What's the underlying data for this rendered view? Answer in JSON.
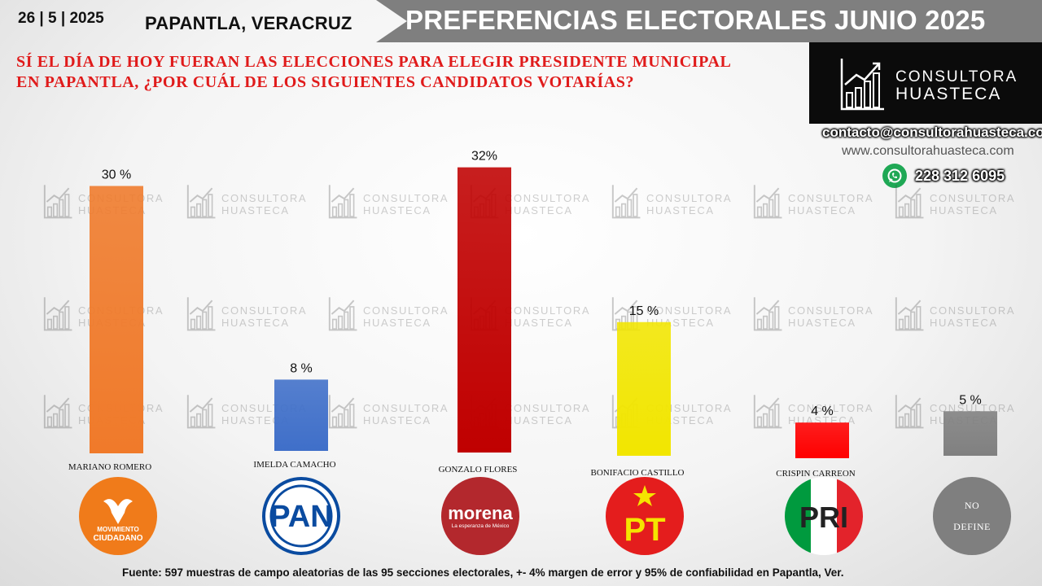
{
  "header": {
    "date": "26 | 5 | 2025",
    "location": "PAPANTLA, VERACRUZ",
    "title": "PREFERENCIAS ELECTORALES JUNIO 2025",
    "question_line1": "SÍ EL DÍA DE HOY FUERAN LAS ELECCIONES PARA ELEGIR PRESIDENTE MUNICIPAL",
    "question_line2": "EN PAPANTLA, ¿POR CUÁL DE LOS SIGUIENTES CANDIDATOS VOTARÍAS?"
  },
  "brand": {
    "name_line1": "CONSULTORA",
    "name_line2": "HUASTECA",
    "email": "contacto@consultorahuasteca.com",
    "website": "www.consultorahuasteca.com",
    "phone": "228 312 6095",
    "whatsapp_icon": "whatsapp-icon"
  },
  "chart_data": {
    "type": "bar",
    "categories": [
      "MARIANO ROMERO",
      "IMELDA CAMACHO",
      "GONZALO FLORES",
      "BONIFACIO CASTILLO",
      "CRISPIN CARREON",
      ""
    ],
    "values": [
      30,
      8,
      32,
      15,
      4,
      5
    ],
    "data_labels": [
      "30 %",
      "8 %",
      "32%",
      "15 %",
      "4 %",
      "5 %"
    ],
    "colors": [
      "#f07a2a",
      "#3f6fc9",
      "#c00000",
      "#f2e600",
      "#ff0000",
      "#808080"
    ],
    "title": "",
    "xlabel": "",
    "ylabel": "",
    "ylim": [
      0,
      32
    ],
    "grid": false
  },
  "parties": [
    {
      "name": "MOVIMIENTO CIUDADANO",
      "line1": "MOVIMIENTO",
      "line2": "CIUDADANO",
      "color": "#f07b1a"
    },
    {
      "name": "PAN",
      "color": "#0a4ba0"
    },
    {
      "name": "morena",
      "tagline": "La esperanza de México",
      "color": "#b3282d"
    },
    {
      "name": "PT",
      "color": "#e41d1d"
    },
    {
      "name": "PRI",
      "color": "#009a3e"
    },
    {
      "name": "NO DEFINE",
      "line1": "NO",
      "line2": "DEFINE",
      "color": "#7f7f7f"
    }
  ],
  "footer": "Fuente:  597 muestras de campo aleatorias de las 95 secciones electorales, +- 4% margen de error y 95% de confiabilidad en Papantla, Ver."
}
